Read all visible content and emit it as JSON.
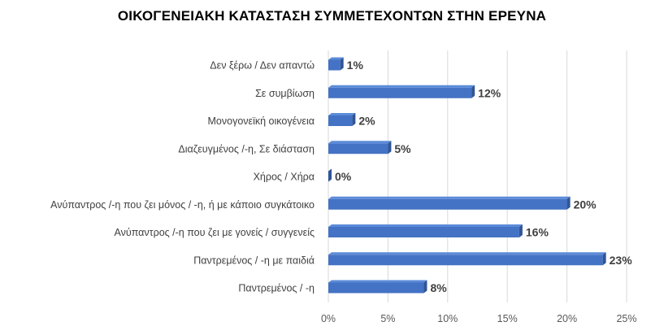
{
  "chart_data": {
    "type": "bar",
    "orientation": "horizontal",
    "title": "ΟΙΚΟΓΕΝΕΙΑΚΗ ΚΑΤΑΣΤΑΣΗ ΣΥΜΜΕΤΕΧΟΝΤΩΝ ΣΤΗΝ ΕΡΕΥΝΑ",
    "categories": [
      "Δεν ξέρω / Δεν απαντώ",
      "Σε συμβίωση",
      "Μονογονεϊκή οικογένεια",
      "Διαζευγμένος /-η, Σε διάσταση",
      "Χήρος / Χήρα",
      "Ανύπαντρος /-η που ζει μόνος / -η, ή με κάποιο συγκάτοικο",
      "Ανύπαντρος /-η που ζει με γονείς / συγγενείς",
      "Παντρεμένος / -η με παιδιά",
      "Παντρεμένος / -η"
    ],
    "values": [
      1,
      12,
      2,
      5,
      0,
      20,
      16,
      23,
      8
    ],
    "data_labels": [
      "1%",
      "12%",
      "2%",
      "5%",
      "0%",
      "20%",
      "16%",
      "23%",
      "8%"
    ],
    "xlim": [
      0,
      25
    ],
    "xticks": [
      "0%",
      "5%",
      "10%",
      "15%",
      "20%",
      "25%"
    ],
    "grid": "vertical",
    "bar_color": "#4472C4",
    "bar_side_color": "#2F5597",
    "bar_top_color": "#5B8BD9",
    "gridline_color": "#D9D9D9"
  }
}
